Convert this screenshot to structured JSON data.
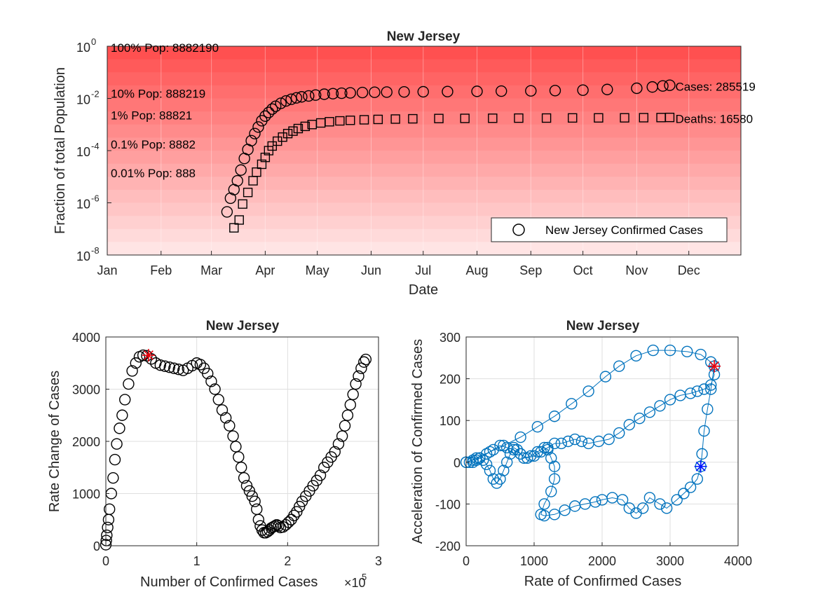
{
  "chart_data": [
    {
      "type": "scatter",
      "title": "New Jersey",
      "xlabel": "Date",
      "ylabel": "Fraction of total Population",
      "yscale": "log",
      "ylim": [
        1e-08,
        1
      ],
      "xlim": [
        "2020-01-01",
        "2020-12-31"
      ],
      "x_tick_labels": [
        "Jan",
        "Feb",
        "Mar",
        "Apr",
        "May",
        "Jun",
        "Jul",
        "Aug",
        "Sep",
        "Oct",
        "Nov",
        "Dec"
      ],
      "y_ticks": [
        {
          "base": "10",
          "exp": "0",
          "value": 1
        },
        {
          "base": "10",
          "exp": "-2",
          "value": 0.01
        },
        {
          "base": "10",
          "exp": "-4",
          "value": 0.0001
        },
        {
          "base": "10",
          "exp": "-6",
          "value": 1e-06
        },
        {
          "base": "10",
          "exp": "-8",
          "value": 1e-08
        }
      ],
      "population_bands": [
        {
          "label": "100% Pop: 8882190",
          "fraction": 1
        },
        {
          "label": "10% Pop: 888219",
          "fraction": 0.1
        },
        {
          "label": "1% Pop: 88821",
          "fraction": 0.01
        },
        {
          "label": "0.1% Pop: 8882",
          "fraction": 0.001
        },
        {
          "label": "0.01% Pop: 888",
          "fraction": 0.0001
        }
      ],
      "series": [
        {
          "name": "New Jersey Confirmed Cases",
          "marker": "circle",
          "end_label": "Cases: 285519",
          "points": [
            [
              "2020-03-10",
              4.5e-07
            ],
            [
              "2020-03-12",
              1.5e-06
            ],
            [
              "2020-03-14",
              3.2e-06
            ],
            [
              "2020-03-16",
              7e-06
            ],
            [
              "2020-03-18",
              1.8e-05
            ],
            [
              "2020-03-20",
              5e-05
            ],
            [
              "2020-03-22",
              0.00011
            ],
            [
              "2020-03-24",
              0.00024
            ],
            [
              "2020-03-26",
              0.00045
            ],
            [
              "2020-03-28",
              0.0008
            ],
            [
              "2020-03-30",
              0.0014
            ],
            [
              "2020-04-01",
              0.0021
            ],
            [
              "2020-04-03",
              0.0029
            ],
            [
              "2020-04-05",
              0.0039
            ],
            [
              "2020-04-07",
              0.005
            ],
            [
              "2020-04-10",
              0.0065
            ],
            [
              "2020-04-13",
              0.008
            ],
            [
              "2020-04-16",
              0.0093
            ],
            [
              "2020-04-19",
              0.0105
            ],
            [
              "2020-04-22",
              0.0115
            ],
            [
              "2020-04-26",
              0.0125
            ],
            [
              "2020-04-30",
              0.0135
            ],
            [
              "2020-05-05",
              0.0145
            ],
            [
              "2020-05-10",
              0.0152
            ],
            [
              "2020-05-15",
              0.0158
            ],
            [
              "2020-05-20",
              0.0163
            ],
            [
              "2020-05-27",
              0.0168
            ],
            [
              "2020-06-03",
              0.0172
            ],
            [
              "2020-06-10",
              0.0175
            ],
            [
              "2020-06-20",
              0.0178
            ],
            [
              "2020-07-01",
              0.018
            ],
            [
              "2020-07-15",
              0.0183
            ],
            [
              "2020-08-01",
              0.0187
            ],
            [
              "2020-08-15",
              0.0191
            ],
            [
              "2020-09-01",
              0.0195
            ],
            [
              "2020-09-15",
              0.02
            ],
            [
              "2020-10-01",
              0.0208
            ],
            [
              "2020-10-15",
              0.022
            ],
            [
              "2020-11-01",
              0.0245
            ],
            [
              "2020-11-10",
              0.0275
            ],
            [
              "2020-11-16",
              0.03
            ],
            [
              "2020-11-20",
              0.032
            ]
          ]
        },
        {
          "name": "Deaths",
          "marker": "square",
          "end_label": "Deaths: 16580",
          "points": [
            [
              "2020-03-14",
              1.1e-07
            ],
            [
              "2020-03-17",
              2.2e-07
            ],
            [
              "2020-03-19",
              9e-07
            ],
            [
              "2020-03-22",
              2.5e-06
            ],
            [
              "2020-03-25",
              7e-06
            ],
            [
              "2020-03-27",
              1.5e-05
            ],
            [
              "2020-03-30",
              3e-05
            ],
            [
              "2020-04-01",
              5.5e-05
            ],
            [
              "2020-04-03",
              0.0001
            ],
            [
              "2020-04-05",
              0.00015
            ],
            [
              "2020-04-08",
              0.00023
            ],
            [
              "2020-04-11",
              0.00033
            ],
            [
              "2020-04-14",
              0.00045
            ],
            [
              "2020-04-17",
              0.00056
            ],
            [
              "2020-04-20",
              0.0007
            ],
            [
              "2020-04-24",
              0.00085
            ],
            [
              "2020-04-28",
              0.001
            ],
            [
              "2020-05-03",
              0.00115
            ],
            [
              "2020-05-08",
              0.00128
            ],
            [
              "2020-05-14",
              0.00138
            ],
            [
              "2020-05-20",
              0.00145
            ],
            [
              "2020-05-28",
              0.00152
            ],
            [
              "2020-06-05",
              0.00157
            ],
            [
              "2020-06-15",
              0.00162
            ],
            [
              "2020-06-25",
              0.00166
            ],
            [
              "2020-07-10",
              0.0017
            ],
            [
              "2020-07-25",
              0.00172
            ],
            [
              "2020-08-10",
              0.00174
            ],
            [
              "2020-08-25",
              0.00176
            ],
            [
              "2020-09-10",
              0.00177
            ],
            [
              "2020-09-25",
              0.00179
            ],
            [
              "2020-10-10",
              0.0018
            ],
            [
              "2020-10-25",
              0.00181
            ],
            [
              "2020-11-05",
              0.00183
            ],
            [
              "2020-11-15",
              0.00185
            ],
            [
              "2020-11-20",
              0.00187
            ]
          ]
        }
      ],
      "legend": {
        "label": "New Jersey Confirmed Cases",
        "placement": "bottom-right"
      }
    },
    {
      "type": "scatter",
      "title": "New Jersey",
      "xlabel": "Number of Confirmed Cases",
      "x_exponent": {
        "base": "×10",
        "exp": "5"
      },
      "ylabel": "Rate Change of Cases",
      "xlim": [
        0,
        3
      ],
      "ylim": [
        0,
        4000
      ],
      "x_ticks": [
        "0",
        "1",
        "2",
        "3"
      ],
      "y_ticks": [
        "0",
        "1000",
        "2000",
        "3000",
        "4000"
      ],
      "points": [
        [
          0.0,
          20
        ],
        [
          0.005,
          100
        ],
        [
          0.01,
          200
        ],
        [
          0.02,
          350
        ],
        [
          0.03,
          500
        ],
        [
          0.04,
          700
        ],
        [
          0.06,
          1000
        ],
        [
          0.08,
          1300
        ],
        [
          0.1,
          1650
        ],
        [
          0.12,
          1950
        ],
        [
          0.15,
          2250
        ],
        [
          0.18,
          2500
        ],
        [
          0.21,
          2800
        ],
        [
          0.25,
          3100
        ],
        [
          0.29,
          3350
        ],
        [
          0.33,
          3500
        ],
        [
          0.37,
          3620
        ],
        [
          0.41,
          3650
        ],
        [
          0.45,
          3640
        ],
        [
          0.5,
          3580
        ],
        [
          0.55,
          3500
        ],
        [
          0.6,
          3460
        ],
        [
          0.65,
          3440
        ],
        [
          0.7,
          3420
        ],
        [
          0.75,
          3400
        ],
        [
          0.8,
          3380
        ],
        [
          0.85,
          3360
        ],
        [
          0.9,
          3400
        ],
        [
          0.95,
          3450
        ],
        [
          1.0,
          3500
        ],
        [
          1.04,
          3470
        ],
        [
          1.08,
          3400
        ],
        [
          1.12,
          3300
        ],
        [
          1.16,
          3150
        ],
        [
          1.2,
          3000
        ],
        [
          1.24,
          2800
        ],
        [
          1.28,
          2600
        ],
        [
          1.32,
          2450
        ],
        [
          1.36,
          2300
        ],
        [
          1.4,
          2100
        ],
        [
          1.43,
          1900
        ],
        [
          1.46,
          1700
        ],
        [
          1.49,
          1500
        ],
        [
          1.52,
          1300
        ],
        [
          1.55,
          1150
        ],
        [
          1.58,
          1050
        ],
        [
          1.61,
          950
        ],
        [
          1.64,
          850
        ],
        [
          1.66,
          700
        ],
        [
          1.68,
          500
        ],
        [
          1.7,
          380
        ],
        [
          1.72,
          300
        ],
        [
          1.74,
          250
        ],
        [
          1.76,
          250
        ],
        [
          1.78,
          270
        ],
        [
          1.8,
          300
        ],
        [
          1.82,
          340
        ],
        [
          1.84,
          360
        ],
        [
          1.86,
          380
        ],
        [
          1.88,
          400
        ],
        [
          1.9,
          380
        ],
        [
          1.92,
          350
        ],
        [
          1.95,
          360
        ],
        [
          1.98,
          400
        ],
        [
          2.01,
          450
        ],
        [
          2.04,
          500
        ],
        [
          2.07,
          580
        ],
        [
          2.1,
          650
        ],
        [
          2.13,
          750
        ],
        [
          2.16,
          850
        ],
        [
          2.2,
          950
        ],
        [
          2.24,
          1050
        ],
        [
          2.28,
          1150
        ],
        [
          2.32,
          1250
        ],
        [
          2.36,
          1350
        ],
        [
          2.4,
          1500
        ],
        [
          2.44,
          1600
        ],
        [
          2.48,
          1700
        ],
        [
          2.52,
          1800
        ],
        [
          2.56,
          1950
        ],
        [
          2.6,
          2100
        ],
        [
          2.63,
          2300
        ],
        [
          2.66,
          2500
        ],
        [
          2.69,
          2700
        ],
        [
          2.72,
          2900
        ],
        [
          2.75,
          3100
        ],
        [
          2.78,
          3250
        ],
        [
          2.81,
          3400
        ],
        [
          2.84,
          3520
        ],
        [
          2.86,
          3570
        ]
      ],
      "highlight": {
        "x": 0.47,
        "y": 3650,
        "marker": "star",
        "color": "#e8000b"
      }
    },
    {
      "type": "line",
      "title": "New Jersey",
      "xlabel": "Rate of Confirmed Cases",
      "ylabel": "Acceleration of Confirmed Cases",
      "xlim": [
        0,
        4000
      ],
      "ylim": [
        -200,
        300
      ],
      "x_ticks": [
        "0",
        "1000",
        "2000",
        "3000",
        "4000"
      ],
      "y_ticks": [
        "-200",
        "-100",
        "0",
        "100",
        "200",
        "300"
      ],
      "points": [
        [
          3650,
          230
        ],
        [
          3600,
          175
        ],
        [
          3550,
          127
        ],
        [
          3500,
          75
        ],
        [
          3470,
          20
        ],
        [
          3450,
          -10
        ],
        [
          3400,
          -40
        ],
        [
          3300,
          -60
        ],
        [
          3200,
          -75
        ],
        [
          3100,
          -90
        ],
        [
          2950,
          -110
        ],
        [
          2850,
          -100
        ],
        [
          2700,
          -85
        ],
        [
          2600,
          -110
        ],
        [
          2500,
          -122
        ],
        [
          2400,
          -110
        ],
        [
          2300,
          -90
        ],
        [
          2150,
          -85
        ],
        [
          2000,
          -90
        ],
        [
          1900,
          -95
        ],
        [
          1750,
          -100
        ],
        [
          1600,
          -105
        ],
        [
          1450,
          -115
        ],
        [
          1300,
          -125
        ],
        [
          1150,
          -128
        ],
        [
          1100,
          -125
        ],
        [
          1150,
          -100
        ],
        [
          1250,
          -70
        ],
        [
          1300,
          -40
        ],
        [
          1300,
          -10
        ],
        [
          1250,
          10
        ],
        [
          1200,
          30
        ],
        [
          1150,
          35
        ],
        [
          1050,
          25
        ],
        [
          950,
          15
        ],
        [
          850,
          10
        ],
        [
          800,
          20
        ],
        [
          750,
          30
        ],
        [
          700,
          35
        ],
        [
          650,
          20
        ],
        [
          600,
          0
        ],
        [
          550,
          -20
        ],
        [
          500,
          -40
        ],
        [
          450,
          -50
        ],
        [
          400,
          -40
        ],
        [
          350,
          -20
        ],
        [
          300,
          -5
        ],
        [
          250,
          5
        ],
        [
          200,
          10
        ],
        [
          150,
          5
        ],
        [
          100,
          0
        ],
        [
          50,
          0
        ],
        [
          0,
          0
        ],
        [
          100,
          5
        ],
        [
          200,
          10
        ],
        [
          300,
          20
        ],
        [
          400,
          30
        ],
        [
          500,
          40
        ],
        [
          600,
          35
        ],
        [
          700,
          30
        ],
        [
          800,
          20
        ],
        [
          900,
          10
        ],
        [
          1000,
          15
        ],
        [
          1100,
          25
        ],
        [
          1200,
          35
        ],
        [
          1300,
          45
        ],
        [
          1400,
          45
        ],
        [
          1500,
          50
        ],
        [
          1600,
          55
        ],
        [
          1700,
          50
        ],
        [
          1800,
          45
        ],
        [
          1950,
          50
        ],
        [
          2100,
          55
        ],
        [
          2250,
          70
        ],
        [
          2400,
          90
        ],
        [
          2550,
          105
        ],
        [
          2700,
          120
        ],
        [
          2850,
          135
        ],
        [
          3000,
          150
        ],
        [
          3150,
          160
        ],
        [
          3300,
          165
        ],
        [
          3400,
          170
        ],
        [
          3500,
          175
        ],
        [
          3600,
          185
        ],
        [
          3650,
          210
        ],
        [
          3600,
          240
        ],
        [
          3450,
          258
        ],
        [
          3250,
          265
        ],
        [
          3000,
          268
        ],
        [
          2750,
          268
        ],
        [
          2500,
          255
        ],
        [
          2250,
          230
        ],
        [
          2050,
          205
        ],
        [
          1800,
          170
        ],
        [
          1550,
          140
        ],
        [
          1300,
          110
        ],
        [
          1050,
          85
        ],
        [
          800,
          60
        ],
        [
          550,
          40
        ],
        [
          350,
          25
        ],
        [
          150,
          10
        ],
        [
          0,
          0
        ]
      ],
      "highlights": [
        {
          "x": 3650,
          "y": 230,
          "marker": "star",
          "color": "#e8000b"
        },
        {
          "x": 3450,
          "y": -10,
          "marker": "star",
          "color": "#0015ff"
        }
      ],
      "color": "#0072bd"
    }
  ]
}
